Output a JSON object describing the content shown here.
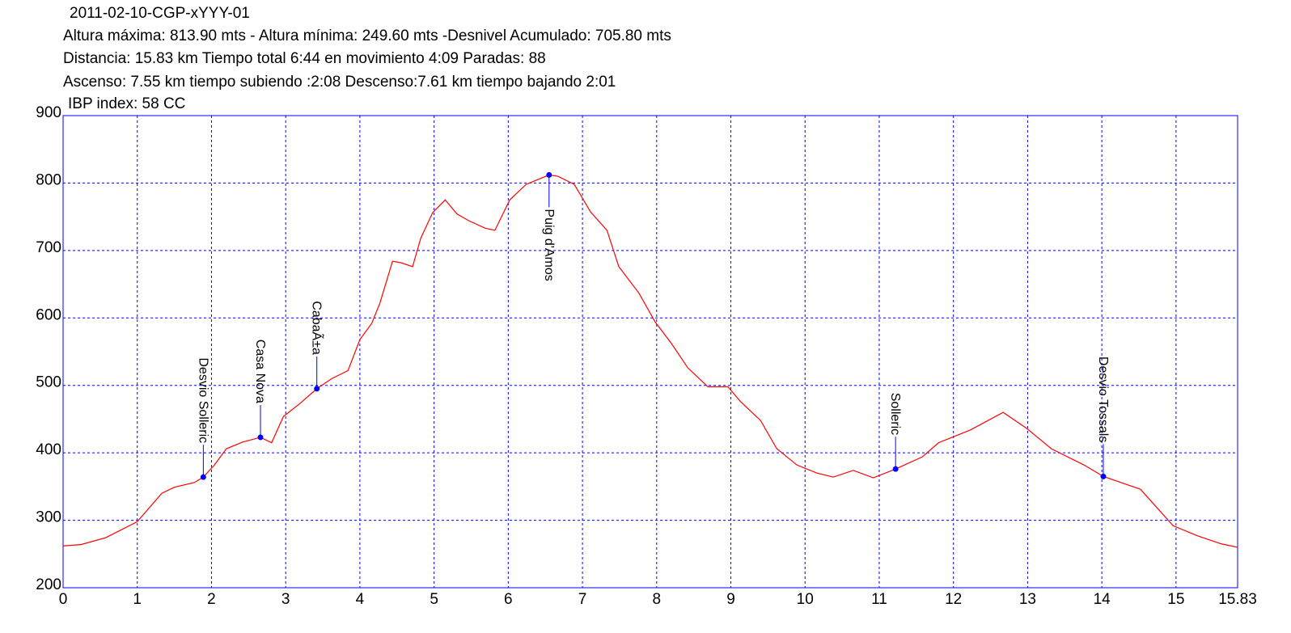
{
  "chart_data": {
    "type": "line",
    "title": "2011-02-10-CGP-xYYY-01",
    "info": [
      "Altura máxima: 813.90 mts - Altura mínima: 249.60 mts -Desnivel Acumulado: 705.80 mts",
      "Distancia: 15.83 km  Tiempo total 6:44  en movimiento 4:09 Paradas: 88",
      "Ascenso: 7.55 km  tiempo subiendo :2:08  Descenso:7.61 km tiempo bajando 2:01",
      "IBP index: 58 CC"
    ],
    "x": [
      0,
      0.24,
      0.57,
      1.0,
      1.33,
      1.5,
      1.77,
      1.89,
      2.04,
      2.2,
      2.42,
      2.66,
      2.81,
      2.97,
      3.18,
      3.42,
      3.62,
      3.84,
      4.0,
      4.16,
      4.27,
      4.44,
      4.55,
      4.71,
      4.82,
      4.98,
      5.15,
      5.31,
      5.47,
      5.69,
      5.82,
      6.02,
      6.24,
      6.55,
      6.67,
      6.89,
      7.11,
      7.33,
      7.49,
      7.76,
      7.98,
      8.2,
      8.42,
      8.69,
      8.96,
      9.13,
      9.4,
      9.62,
      9.89,
      10.16,
      10.38,
      10.65,
      10.92,
      11.22,
      11.58,
      11.8,
      12.23,
      12.67,
      12.99,
      13.32,
      13.76,
      14.02,
      14.52,
      14.96,
      15.29,
      15.61,
      15.83
    ],
    "series": [
      {
        "color": "#ff0000",
        "values": [
          262,
          264,
          274,
          298,
          340,
          349,
          356,
          364,
          382,
          406,
          416,
          423,
          415,
          454,
          472,
          495,
          510,
          522,
          568,
          592,
          622,
          684,
          682,
          676,
          718,
          756,
          775,
          754,
          744,
          733,
          730,
          775,
          798,
          812,
          810,
          798,
          757,
          730,
          676,
          637,
          594,
          562,
          526,
          498,
          498,
          476,
          448,
          406,
          382,
          370,
          364,
          374,
          363,
          376,
          394,
          415,
          434,
          460,
          436,
          406,
          382,
          365,
          346,
          292,
          277,
          265,
          260
        ]
      }
    ],
    "waypoints": [
      {
        "x": 1.89,
        "y": 364,
        "label": "Desvio Solleric"
      },
      {
        "x": 2.66,
        "y": 423,
        "label": "Casa Nova"
      },
      {
        "x": 3.42,
        "y": 495,
        "label": "CabaÃ±a"
      },
      {
        "x": 6.55,
        "y": 812,
        "label": "Puig d'Amos"
      },
      {
        "x": 11.22,
        "y": 376,
        "label": "Solleric"
      },
      {
        "x": 14.02,
        "y": 365,
        "label": "Desvio Tossals"
      }
    ],
    "waypoint_color": "#0000ff",
    "xlim": [
      0,
      15.83
    ],
    "xticks": [
      0,
      1,
      2,
      3,
      4,
      5,
      6,
      7,
      8,
      9,
      10,
      11,
      12,
      13,
      14,
      15,
      15.83
    ],
    "ylim": [
      200,
      900
    ],
    "yticks": [
      200,
      300,
      400,
      500,
      600,
      700,
      800,
      900
    ],
    "grid": true
  }
}
